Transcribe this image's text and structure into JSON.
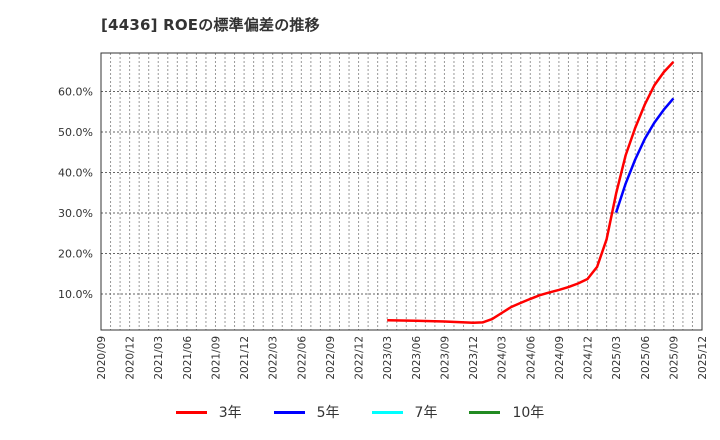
{
  "title": "[4436]  ROEの標準偏差の推移",
  "chart_data": {
    "type": "line",
    "title": "[4436]  ROEの標準偏差の推移",
    "xlabel": "",
    "ylabel": "",
    "ylim": [
      0,
      0.68
    ],
    "grid": true,
    "legend_position": "bottom",
    "y_ticks": [
      "10.0%",
      "20.0%",
      "30.0%",
      "40.0%",
      "50.0%",
      "60.0%"
    ],
    "x_ticks": [
      "2020/09",
      "2020/12",
      "2021/03",
      "2021/06",
      "2021/09",
      "2021/12",
      "2022/03",
      "2022/06",
      "2022/09",
      "2022/12",
      "2023/03",
      "2023/06",
      "2023/09",
      "2023/12",
      "2024/03",
      "2024/06",
      "2024/09",
      "2024/12",
      "2025/03",
      "2025/06",
      "2025/09",
      "2025/12"
    ],
    "x": [
      "2023/03",
      "2023/06",
      "2023/09",
      "2023/12",
      "2024/01",
      "2024/02",
      "2024/03",
      "2024/04",
      "2024/05",
      "2024/06",
      "2024/07",
      "2024/08",
      "2024/09",
      "2024/10",
      "2024/11",
      "2024/12",
      "2025/01",
      "2025/02",
      "2025/03",
      "2025/04",
      "2025/05",
      "2025/06",
      "2025/07",
      "2025/08",
      "2025/09"
    ],
    "series": [
      {
        "name": "3年",
        "color": "#ff0000",
        "values": [
          3.5,
          3.4,
          3.2,
          2.9,
          3.0,
          3.8,
          5.3,
          6.8,
          7.8,
          8.8,
          9.7,
          10.4,
          11.0,
          11.7,
          12.6,
          13.7,
          16.7,
          23.5,
          34.8,
          44.3,
          51.0,
          56.8,
          61.5,
          64.8,
          67.3
        ]
      },
      {
        "name": "5年",
        "color": "#0000ff",
        "values": [
          null,
          null,
          null,
          null,
          null,
          null,
          null,
          null,
          null,
          null,
          null,
          null,
          null,
          null,
          null,
          null,
          null,
          null,
          30.1,
          37.3,
          43.2,
          48.3,
          52.3,
          55.5,
          58.3
        ]
      },
      {
        "name": "7年",
        "color": "#00ffff",
        "values": []
      },
      {
        "name": "10年",
        "color": "#228b22",
        "values": []
      }
    ]
  },
  "legend": [
    {
      "label": "3年",
      "color": "#ff0000"
    },
    {
      "label": "5年",
      "color": "#0000ff"
    },
    {
      "label": "7年",
      "color": "#00ffff"
    },
    {
      "label": "10年",
      "color": "#228b22"
    }
  ]
}
